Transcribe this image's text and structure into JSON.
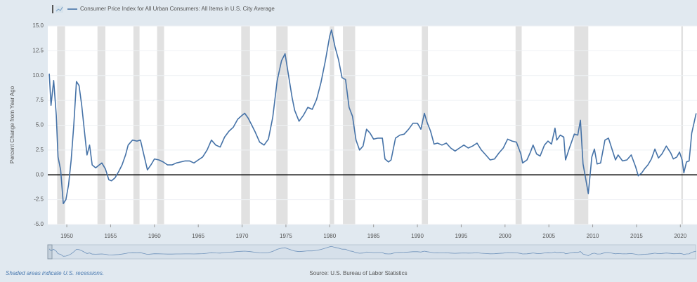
{
  "chart_data": {
    "type": "line",
    "y_label": "Percent Change from Year Ago",
    "note": "Shaded areas indicate U.S. recessions.",
    "source": "Source: U.S. Bureau of Labor Statistics",
    "xlim": [
      1947.83,
      2021.9
    ],
    "xticks": [
      1950,
      1955,
      1960,
      1965,
      1970,
      1975,
      1980,
      1985,
      1990,
      1995,
      2000,
      2005,
      2010,
      2015,
      2020
    ],
    "ylim": [
      -5,
      15
    ],
    "yticks": [
      {
        "value": -5,
        "label": "-5.0"
      },
      -2.5,
      {
        "value": 0,
        "label": "0.0"
      },
      2.5,
      {
        "value": 5,
        "label": "5.0"
      },
      7.5,
      {
        "value": 10,
        "label": "10.0"
      },
      12.5,
      {
        "value": 15,
        "label": "15.0"
      }
    ],
    "grid": true,
    "recessions": [
      [
        1948.9,
        1949.8
      ],
      [
        1953.5,
        1954.4
      ],
      [
        1957.6,
        1958.3
      ],
      [
        1960.3,
        1961.1
      ],
      [
        1969.9,
        1970.9
      ],
      [
        1973.9,
        1975.2
      ],
      [
        1980.0,
        1980.5
      ],
      [
        1981.5,
        1982.9
      ],
      [
        1990.5,
        1991.2
      ],
      [
        2001.2,
        2001.9
      ],
      [
        2007.9,
        2009.5
      ],
      [
        2020.1,
        2020.3
      ]
    ],
    "x": [
      1948.0,
      1948.2,
      1948.5,
      1948.8,
      1949.0,
      1949.3,
      1949.6,
      1949.9,
      1950.2,
      1950.5,
      1950.8,
      1951.1,
      1951.4,
      1951.7,
      1952.0,
      1952.3,
      1952.6,
      1952.9,
      1953.3,
      1953.7,
      1954.0,
      1954.4,
      1954.8,
      1955.1,
      1955.5,
      1955.9,
      1956.3,
      1956.7,
      1957.0,
      1957.5,
      1958.0,
      1958.4,
      1958.8,
      1959.2,
      1959.6,
      1960.0,
      1960.5,
      1961.0,
      1961.5,
      1962.0,
      1962.5,
      1963.0,
      1963.5,
      1964.0,
      1964.5,
      1965.0,
      1965.5,
      1966.0,
      1966.5,
      1967.0,
      1967.5,
      1968.0,
      1968.5,
      1969.0,
      1969.5,
      1970.0,
      1970.3,
      1970.7,
      1971.0,
      1971.5,
      1972.0,
      1972.5,
      1973.0,
      1973.5,
      1974.0,
      1974.5,
      1974.9,
      1975.3,
      1975.7,
      1976.0,
      1976.5,
      1977.0,
      1977.5,
      1978.0,
      1978.5,
      1979.0,
      1979.5,
      1980.0,
      1980.2,
      1980.6,
      1981.0,
      1981.4,
      1981.8,
      1982.2,
      1982.6,
      1983.0,
      1983.4,
      1983.8,
      1984.2,
      1984.6,
      1985.0,
      1985.5,
      1986.0,
      1986.3,
      1986.7,
      1987.0,
      1987.5,
      1988.0,
      1988.5,
      1989.0,
      1989.5,
      1990.0,
      1990.4,
      1990.8,
      1991.1,
      1991.5,
      1991.9,
      1992.3,
      1992.8,
      1993.3,
      1993.8,
      1994.3,
      1994.8,
      1995.3,
      1995.8,
      1996.3,
      1996.8,
      1997.3,
      1997.8,
      1998.3,
      1998.8,
      1999.3,
      1999.8,
      2000.3,
      2000.8,
      2001.3,
      2001.8,
      2002.0,
      2002.5,
      2002.9,
      2003.2,
      2003.6,
      2004.0,
      2004.5,
      2004.9,
      2005.3,
      2005.7,
      2005.9,
      2006.3,
      2006.7,
      2006.9,
      2007.3,
      2007.9,
      2008.3,
      2008.6,
      2008.9,
      2009.2,
      2009.5,
      2009.9,
      2010.2,
      2010.5,
      2010.9,
      2011.4,
      2011.8,
      2012.2,
      2012.6,
      2012.9,
      2013.4,
      2013.9,
      2014.4,
      2014.9,
      2015.2,
      2015.6,
      2015.9,
      2016.3,
      2016.7,
      2017.1,
      2017.5,
      2017.9,
      2018.4,
      2018.9,
      2019.2,
      2019.6,
      2019.9,
      2020.2,
      2020.4,
      2020.7,
      2021.0,
      2021.3,
      2021.6,
      2021.8
    ],
    "series": [
      {
        "name": "Consumer Price Index for All Urban Consumers: All Items in U.S. City Average",
        "color": "#4572a7",
        "values": [
          10.2,
          7.0,
          9.5,
          6.0,
          1.8,
          0.5,
          -2.9,
          -2.5,
          -1.0,
          1.5,
          5.0,
          9.4,
          9.0,
          7.0,
          4.5,
          2.0,
          3.0,
          1.0,
          0.7,
          1.0,
          1.2,
          0.6,
          -0.5,
          -0.6,
          -0.3,
          0.3,
          1.0,
          2.0,
          3.0,
          3.5,
          3.4,
          3.5,
          2.0,
          0.5,
          1.0,
          1.6,
          1.5,
          1.3,
          1.0,
          1.0,
          1.2,
          1.3,
          1.4,
          1.4,
          1.2,
          1.5,
          1.8,
          2.5,
          3.5,
          3.0,
          2.8,
          3.8,
          4.4,
          4.8,
          5.6,
          6.0,
          6.2,
          5.7,
          5.2,
          4.3,
          3.3,
          3.0,
          3.6,
          5.8,
          9.5,
          11.5,
          12.2,
          10.0,
          7.8,
          6.5,
          5.4,
          6.0,
          6.8,
          6.6,
          7.6,
          9.3,
          11.5,
          14.0,
          14.6,
          12.9,
          11.6,
          9.8,
          9.6,
          6.8,
          5.9,
          3.5,
          2.5,
          2.9,
          4.6,
          4.2,
          3.6,
          3.7,
          3.7,
          1.6,
          1.3,
          1.5,
          3.7,
          4.0,
          4.1,
          4.6,
          5.2,
          5.2,
          4.6,
          6.2,
          5.3,
          4.4,
          3.1,
          3.2,
          3.0,
          3.2,
          2.7,
          2.4,
          2.7,
          3.0,
          2.7,
          2.9,
          3.2,
          2.5,
          2.0,
          1.5,
          1.6,
          2.2,
          2.7,
          3.6,
          3.4,
          3.3,
          2.1,
          1.2,
          1.5,
          2.3,
          3.0,
          2.1,
          1.9,
          3.0,
          3.4,
          3.1,
          4.7,
          3.5,
          4.0,
          3.8,
          1.5,
          2.6,
          4.1,
          4.0,
          5.5,
          1.1,
          -0.4,
          -1.9,
          1.8,
          2.6,
          1.1,
          1.2,
          3.5,
          3.7,
          2.6,
          1.5,
          2.0,
          1.4,
          1.5,
          2.0,
          0.8,
          -0.1,
          0.2,
          0.6,
          1.0,
          1.6,
          2.6,
          1.7,
          2.1,
          2.9,
          2.2,
          1.6,
          1.8,
          2.3,
          1.5,
          0.2,
          1.3,
          1.4,
          4.2,
          5.4,
          6.2
        ]
      }
    ]
  }
}
